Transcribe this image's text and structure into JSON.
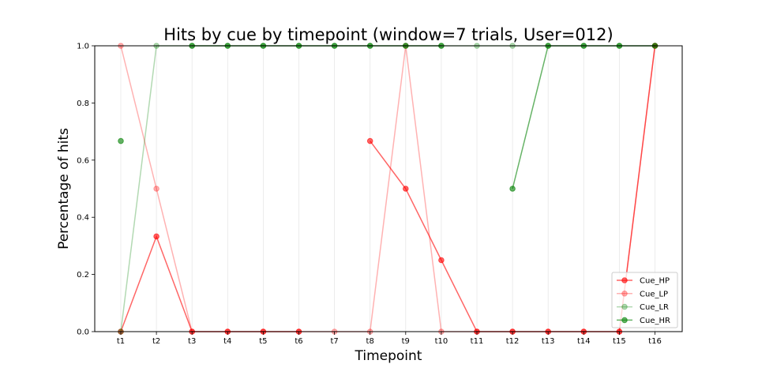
{
  "chart_data": {
    "type": "line",
    "title": "Hits by cue by timepoint (window=7 trials, User=012)",
    "xlabel": "Timepoint",
    "ylabel": "Percentage of hits",
    "categories": [
      "t1",
      "t2",
      "t3",
      "t4",
      "t5",
      "t6",
      "t7",
      "t8",
      "t9",
      "t10",
      "t11",
      "t12",
      "t13",
      "t14",
      "t15",
      "t16"
    ],
    "ylim": [
      0,
      1
    ],
    "yticks": [
      "0.0",
      "0.2",
      "0.4",
      "0.6",
      "0.8",
      "1.0"
    ],
    "grid": "vertical",
    "legend_position": "lower-right",
    "series": [
      {
        "name": "Cue_HP",
        "color": "#ff0000",
        "alpha": 0.6,
        "values": [
          0,
          0.333,
          0,
          0,
          0,
          0,
          null,
          0.667,
          0.5,
          0.25,
          0,
          0,
          0,
          0,
          0,
          1
        ]
      },
      {
        "name": "Cue_LP",
        "color": "#ff0000",
        "alpha": 0.3,
        "values": [
          1,
          0.5,
          0,
          0,
          0,
          0,
          0,
          0,
          1,
          0,
          0,
          0,
          0,
          0,
          0,
          1
        ]
      },
      {
        "name": "Cue_LR",
        "color": "#008000",
        "alpha": 0.3,
        "values": [
          0,
          1,
          1,
          1,
          1,
          1,
          1,
          1,
          1,
          1,
          1,
          1,
          1,
          1,
          1,
          1
        ]
      },
      {
        "name": "Cue_HR",
        "color": "#008000",
        "alpha": 0.6,
        "values": [
          0.667,
          null,
          1,
          1,
          1,
          1,
          1,
          1,
          1,
          1,
          null,
          0.5,
          1,
          1,
          1,
          1
        ]
      }
    ]
  }
}
